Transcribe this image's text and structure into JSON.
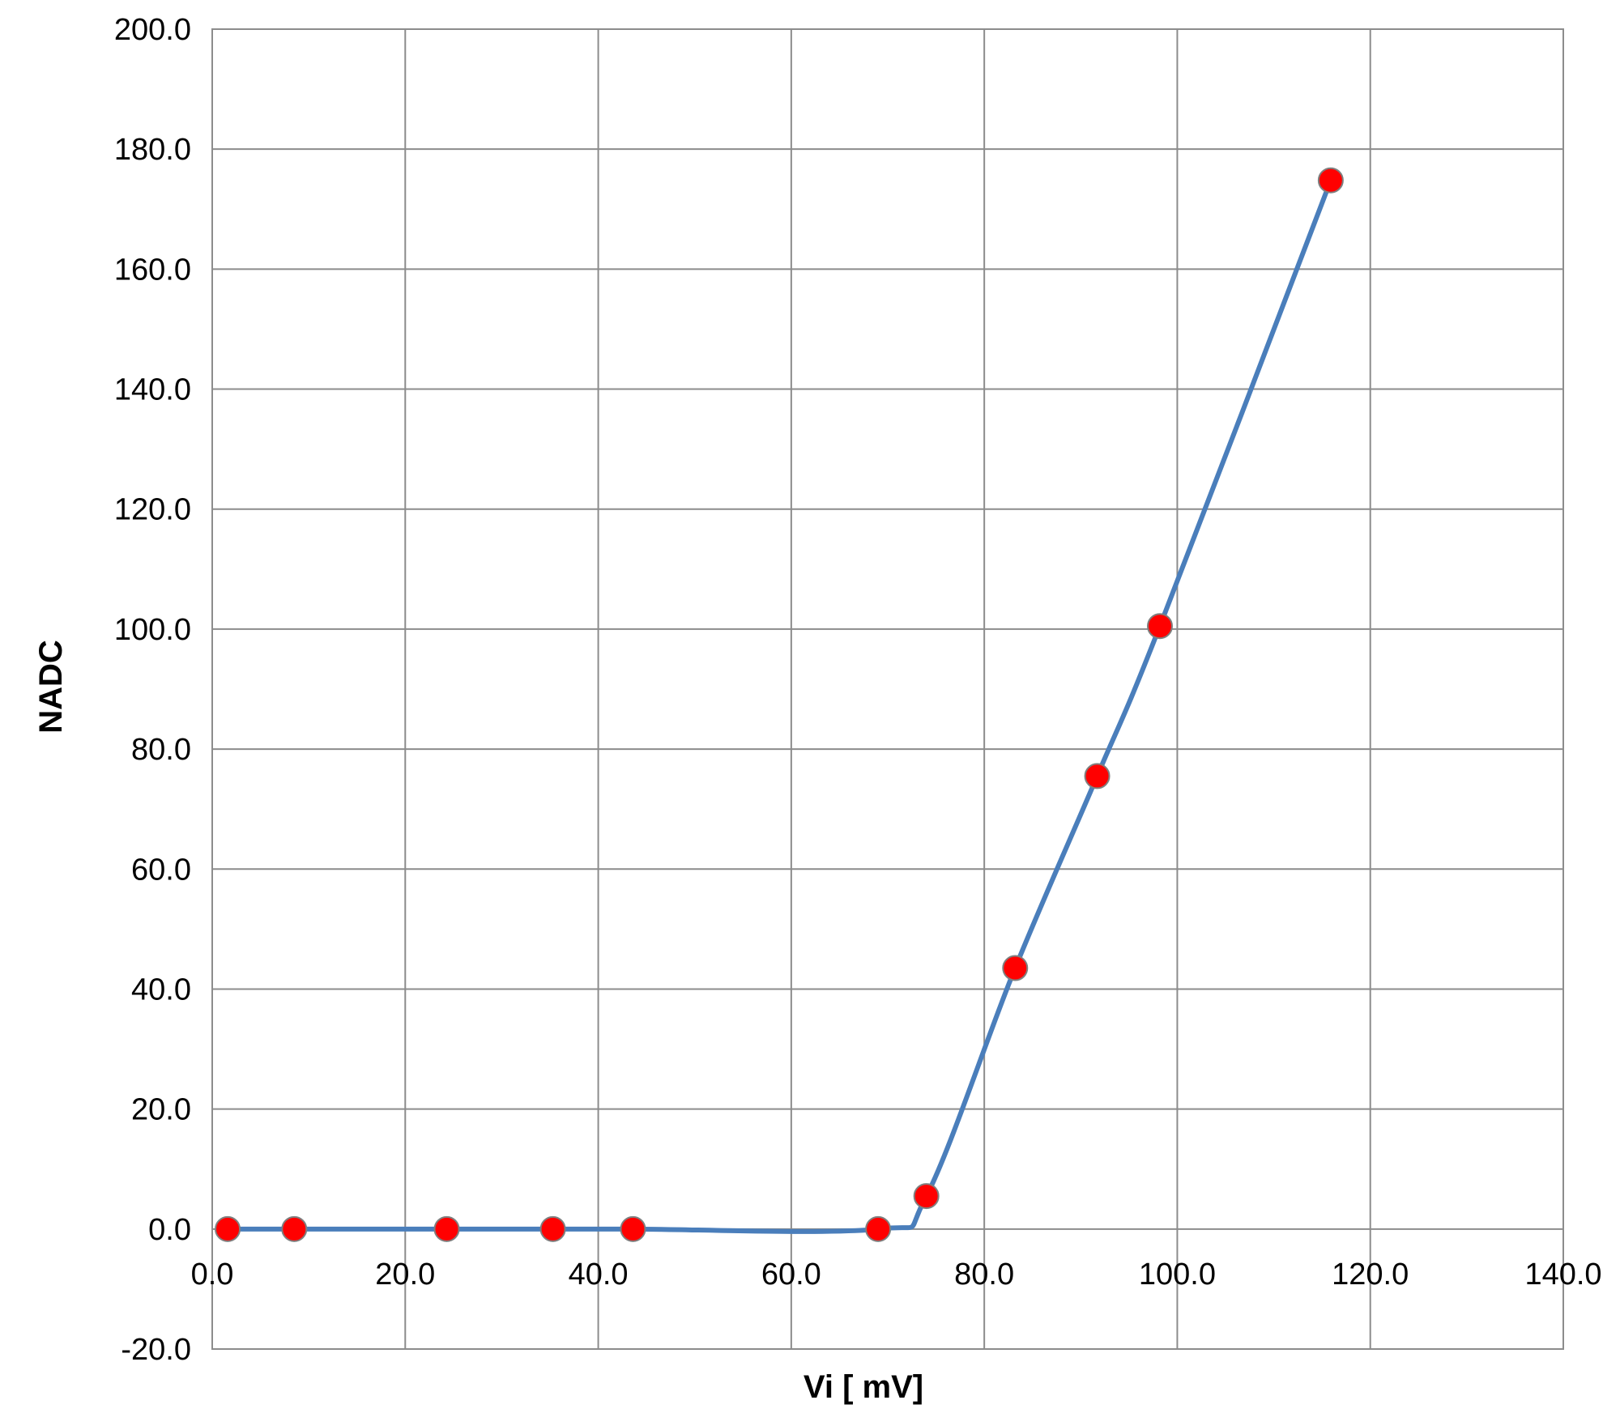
{
  "chart_data": {
    "type": "scatter",
    "title": "",
    "xlabel": "Vi [ mV]",
    "ylabel": "NADC",
    "xlim": [
      0,
      140
    ],
    "ylim": [
      -20,
      200
    ],
    "x_ticks": [
      "0.0",
      "20.0",
      "40.0",
      "60.0",
      "80.0",
      "100.0",
      "120.0",
      "140.0"
    ],
    "y_ticks": [
      "-20.0",
      "0.0",
      "20.0",
      "40.0",
      "60.0",
      "80.0",
      "100.0",
      "120.0",
      "140.0",
      "160.0",
      "180.0",
      "200.0"
    ],
    "grid": true,
    "legend": "none",
    "series": [
      {
        "x": [
          1.6,
          8.5,
          24.3,
          35.3,
          43.6,
          69.0,
          74.0,
          83.2,
          91.7,
          98.2,
          115.9
        ],
        "y": [
          0.0,
          0.0,
          0.0,
          0.0,
          0.0,
          0.0,
          5.5,
          43.5,
          75.5,
          100.5,
          174.8
        ],
        "marker_color": "#ff0000",
        "marker_edge_color": "#7f7f7f",
        "line_color": "#4a7ebb",
        "smoothed_line": true
      }
    ]
  }
}
